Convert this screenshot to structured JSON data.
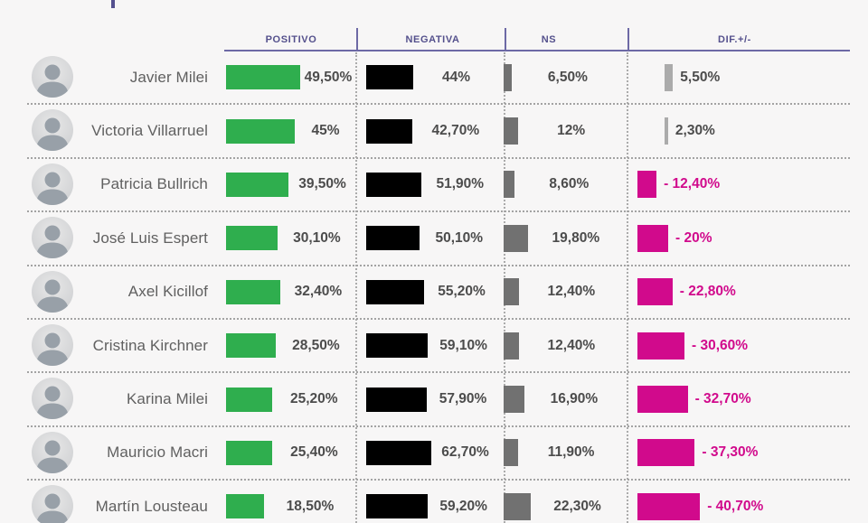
{
  "colors": {
    "background": "#f7f6f6",
    "header_text": "#54508c",
    "header_line": "#6d69a5",
    "positive_bar": "#2fae4e",
    "negative_bar": "#000000",
    "ns_bar": "#717171",
    "dif_positive_bar": "#ababab",
    "dif_negative_bar": "#d10a8c",
    "dif_negative_text": "#d10a8c",
    "name_text": "#606060",
    "value_text": "#4c4c4c"
  },
  "chart_data": {
    "type": "table",
    "title": "",
    "unit": "%",
    "columns": [
      "POSITIVO",
      "NEGATIVA",
      "NS",
      "DIF.+/-"
    ],
    "rows": [
      {
        "name": "Javier Milei",
        "positivo": 49.5,
        "negativa": 44,
        "ns": 6.5,
        "dif": 5.5,
        "labels": {
          "positivo": "49,50%",
          "negativa": "44%",
          "ns": "6,50%",
          "dif": "5,50%"
        }
      },
      {
        "name": "Victoria Villarruel",
        "positivo": 45,
        "negativa": 42.7,
        "ns": 12,
        "dif": 2.3,
        "labels": {
          "positivo": "45%",
          "negativa": "42,70%",
          "ns": "12%",
          "dif": "2,30%"
        }
      },
      {
        "name": "Patricia Bullrich",
        "positivo": 39.5,
        "negativa": 51.9,
        "ns": 8.6,
        "dif": -12.4,
        "labels": {
          "positivo": "39,50%",
          "negativa": "51,90%",
          "ns": "8,60%",
          "dif": "- 12,40%"
        }
      },
      {
        "name": "José Luis Espert",
        "positivo": 30.1,
        "negativa": 50.1,
        "ns": 19.8,
        "dif": -20,
        "labels": {
          "positivo": "30,10%",
          "negativa": "50,10%",
          "ns": "19,80%",
          "dif": "- 20%"
        }
      },
      {
        "name": "Axel Kicillof",
        "positivo": 32.4,
        "negativa": 55.2,
        "ns": 12.4,
        "dif": -22.8,
        "labels": {
          "positivo": "32,40%",
          "negativa": "55,20%",
          "ns": "12,40%",
          "dif": "- 22,80%"
        }
      },
      {
        "name": "Cristina Kirchner",
        "positivo": 28.5,
        "negativa": 59.1,
        "ns": 12.4,
        "dif": -30.6,
        "labels": {
          "positivo": "28,50%",
          "negativa": "59,10%",
          "ns": "12,40%",
          "dif": "- 30,60%"
        }
      },
      {
        "name": "Karina Milei",
        "positivo": 25.2,
        "negativa": 57.9,
        "ns": 16.9,
        "dif": -32.7,
        "labels": {
          "positivo": "25,20%",
          "negativa": "57,90%",
          "ns": "16,90%",
          "dif": "- 32,70%"
        }
      },
      {
        "name": "Mauricio Macri",
        "positivo": 25.4,
        "negativa": 62.7,
        "ns": 11.9,
        "dif": -37.3,
        "labels": {
          "positivo": "25,40%",
          "negativa": "62,70%",
          "ns": "11,90%",
          "dif": "- 37,30%"
        }
      },
      {
        "name": "Martín Lousteau",
        "positivo": 18.5,
        "negativa": 59.2,
        "ns": 22.3,
        "dif": -40.7,
        "labels": {
          "positivo": "18,50%",
          "negativa": "59,20%",
          "ns": "22,30%",
          "dif": "- 40,70%"
        }
      }
    ]
  }
}
